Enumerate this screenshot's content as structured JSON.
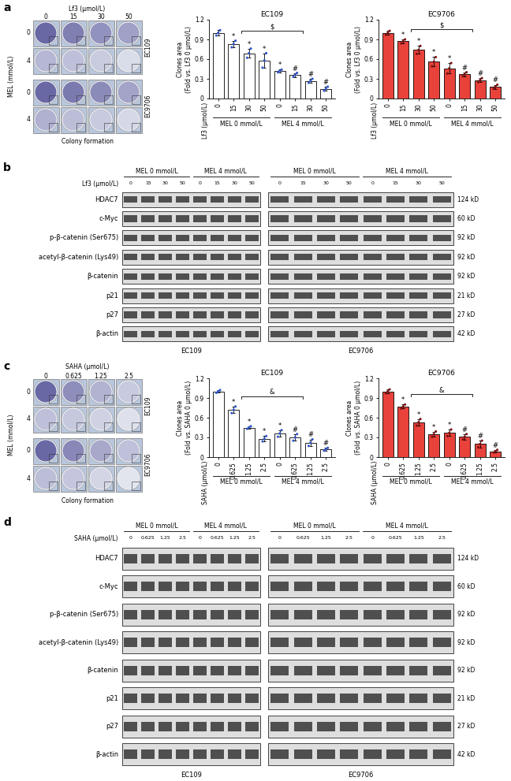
{
  "chart_data": [
    {
      "type": "bar",
      "title": "EC109",
      "x_label": "Lf3 (μmol/L)",
      "y_label": "Clones area\n(Fold vs. Lf3 0 μmol/L)",
      "categories": [
        "0",
        "15",
        "30",
        "50",
        "0",
        "15",
        "30",
        "50"
      ],
      "group_labels": [
        "MEL 0 mmol/L",
        "MEL 4 mmol/L"
      ],
      "values": [
        1.0,
        0.83,
        0.69,
        0.58,
        0.42,
        0.36,
        0.27,
        0.15
      ],
      "errors": [
        0.04,
        0.05,
        0.07,
        0.11,
        0.02,
        0.03,
        0.03,
        0.03
      ],
      "points": [
        [
          0.96,
          1.0,
          1.04
        ],
        [
          0.78,
          0.83,
          0.88
        ],
        [
          0.62,
          0.69,
          0.76
        ],
        [
          0.47,
          0.58,
          0.69
        ],
        [
          0.4,
          0.42,
          0.44
        ],
        [
          0.33,
          0.36,
          0.39
        ],
        [
          0.24,
          0.27,
          0.3
        ],
        [
          0.12,
          0.15,
          0.18
        ]
      ],
      "annotations": [
        null,
        "*",
        "*",
        "*",
        "*",
        "#",
        "#",
        "#"
      ],
      "comparison_label": "$",
      "color": "#ffffff",
      "ylim": [
        0,
        1.2
      ],
      "yticks": [
        0,
        0.3,
        0.6,
        0.9,
        1.2
      ]
    },
    {
      "type": "bar",
      "title": "EC9706",
      "x_label": "Lf3 (μmol/L)",
      "y_label": "Clones area\n(Fold vs. Lf3 0 μmol/L)",
      "categories": [
        "0",
        "15",
        "30",
        "50",
        "0",
        "15",
        "30",
        "50"
      ],
      "group_labels": [
        "MEL 0 mmol/L",
        "MEL 4 mmol/L"
      ],
      "values": [
        1.0,
        0.87,
        0.74,
        0.56,
        0.46,
        0.37,
        0.28,
        0.18
      ],
      "errors": [
        0.03,
        0.03,
        0.06,
        0.07,
        0.08,
        0.03,
        0.03,
        0.03
      ],
      "points": [
        [
          0.97,
          1.0,
          1.03
        ],
        [
          0.84,
          0.87,
          0.9
        ],
        [
          0.68,
          0.74,
          0.8
        ],
        [
          0.49,
          0.56,
          0.63
        ],
        [
          0.38,
          0.46,
          0.54
        ],
        [
          0.34,
          0.37,
          0.4
        ],
        [
          0.25,
          0.28,
          0.31
        ],
        [
          0.15,
          0.18,
          0.21
        ]
      ],
      "annotations": [
        null,
        "*",
        "*",
        "*",
        "*",
        "#",
        "#",
        "#"
      ],
      "comparison_label": "$",
      "color": "#e8423b",
      "ylim": [
        0,
        1.2
      ],
      "yticks": [
        0,
        0.3,
        0.6,
        0.9,
        1.2
      ]
    },
    {
      "type": "bar",
      "title": "EC109",
      "x_label": "SAHA (μmol/L)",
      "y_label": "Clones area\n(Fold vs. SAHA 0 μmol/L)",
      "categories": [
        "0",
        "0.625",
        "1.25",
        "2.5",
        "0",
        "0.625",
        "1.25",
        "2.5"
      ],
      "group_labels": [
        "MEL 0 mmol/L",
        "MEL 4 mmol/L"
      ],
      "values": [
        1.0,
        0.72,
        0.45,
        0.28,
        0.36,
        0.3,
        0.22,
        0.12
      ],
      "errors": [
        0.02,
        0.05,
        0.02,
        0.04,
        0.05,
        0.05,
        0.05,
        0.02
      ],
      "points": [
        [
          0.98,
          1.0,
          1.02
        ],
        [
          0.67,
          0.72,
          0.77
        ],
        [
          0.43,
          0.45,
          0.47
        ],
        [
          0.24,
          0.28,
          0.32
        ],
        [
          0.31,
          0.36,
          0.41
        ],
        [
          0.25,
          0.3,
          0.35
        ],
        [
          0.17,
          0.22,
          0.27
        ],
        [
          0.1,
          0.12,
          0.14
        ]
      ],
      "annotations": [
        null,
        "*",
        "*",
        "*",
        "*",
        "#",
        "#",
        "#"
      ],
      "comparison_label": "&",
      "color": "#ffffff",
      "ylim": [
        0,
        1.2
      ],
      "yticks": [
        0,
        0.3,
        0.6,
        0.9,
        1.2
      ]
    },
    {
      "type": "bar",
      "title": "EC9706",
      "x_label": "SAHA (μmol/L)",
      "y_label": "Clones area\n(Fold vs. SAHA 0 μmol/L)",
      "categories": [
        "0",
        "0.625",
        "1.25",
        "2.5",
        "0",
        "0.625",
        "1.25",
        "2.5"
      ],
      "group_labels": [
        "MEL 0 mmol/L",
        "MEL 4 mmol/L"
      ],
      "values": [
        1.0,
        0.77,
        0.53,
        0.35,
        0.37,
        0.31,
        0.2,
        0.09
      ],
      "errors": [
        0.03,
        0.03,
        0.05,
        0.04,
        0.05,
        0.04,
        0.05,
        0.02
      ],
      "points": [
        [
          0.97,
          1.0,
          1.03
        ],
        [
          0.74,
          0.77,
          0.8
        ],
        [
          0.48,
          0.53,
          0.58
        ],
        [
          0.31,
          0.35,
          0.39
        ],
        [
          0.32,
          0.37,
          0.42
        ],
        [
          0.27,
          0.31,
          0.35
        ],
        [
          0.15,
          0.2,
          0.25
        ],
        [
          0.07,
          0.09,
          0.11
        ]
      ],
      "annotations": [
        null,
        "*",
        "*",
        "*",
        "*",
        "#",
        "#",
        "#"
      ],
      "comparison_label": "&",
      "color": "#e8423b",
      "ylim": [
        0,
        1.2
      ],
      "yticks": [
        0,
        0.3,
        0.6,
        0.9,
        1.2
      ]
    }
  ],
  "panels": [
    {
      "letter": "a",
      "kind": "colony",
      "treatment": "Lf3 (μmol/L)",
      "doses": [
        0,
        15,
        30,
        50
      ],
      "factor": "MEL (mmol/L)",
      "factor_levels": [
        0,
        4
      ],
      "cells": [
        "EC109",
        "EC9706"
      ],
      "caption": "Colony formation"
    },
    {
      "letter": "b",
      "kind": "blot",
      "treatment": "Lf3 (μmol/L)",
      "groups": [
        "MEL 0 mmol/L",
        "MEL 4 mmol/L"
      ],
      "lanes": [
        0,
        15,
        30,
        50,
        0,
        15,
        30,
        50
      ],
      "proteins": [
        "HDAC7",
        "c-Myc",
        "p-β-catenin (Ser675)",
        "acetyl-β-catenin (Lys49)",
        "β-catenin",
        "p21",
        "p27",
        "β-actin"
      ],
      "sizes": [
        "124 kD",
        "60 kD",
        "92 kD",
        "92 kD",
        "92 kD",
        "21 kD",
        "27 kD",
        "42 kD"
      ],
      "cells": [
        "EC109",
        "EC9706"
      ]
    },
    {
      "letter": "c",
      "kind": "colony",
      "treatment": "SAHA (μmol/L)",
      "doses": [
        0,
        0.625,
        1.25,
        2.5
      ],
      "factor": "MEL (mmol/L)",
      "factor_levels": [
        0,
        4
      ],
      "cells": [
        "EC109",
        "EC9706"
      ],
      "caption": "Colony formation"
    },
    {
      "letter": "d",
      "kind": "blot",
      "treatment": "SAHA (μmol/L)",
      "groups": [
        "MEL 0 mmol/L",
        "MEL 4 mmol/L"
      ],
      "lanes": [
        0,
        0.625,
        1.25,
        2.5,
        0,
        0.625,
        1.25,
        2.5
      ],
      "proteins": [
        "HDAC7",
        "c-Myc",
        "p-β-catenin (Ser675)",
        "acetyl-β-catenin (Lys49)",
        "β-catenin",
        "p21",
        "p27",
        "β-actin"
      ],
      "sizes": [
        "124 kD",
        "60 kD",
        "92 kD",
        "92 kD",
        "92 kD",
        "21 kD",
        "27 kD",
        "42 kD"
      ],
      "cells": [
        "EC109",
        "EC9706"
      ]
    }
  ]
}
